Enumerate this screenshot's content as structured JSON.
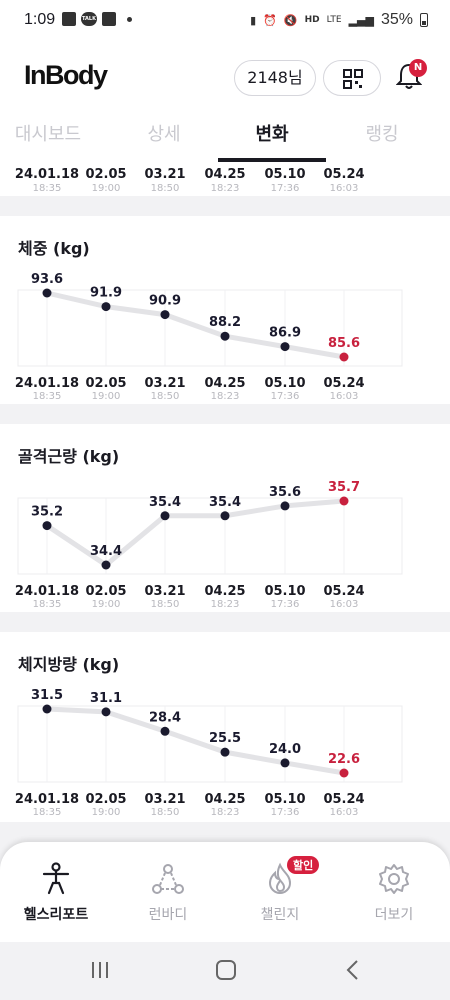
{
  "status_bar": {
    "time": "1:09",
    "talk_badge": "TALK",
    "hd_label": "HD",
    "lte_label": "LTE",
    "battery": "35%"
  },
  "header": {
    "logo": "InBody",
    "user_label": "2148님",
    "notification_badge": "N"
  },
  "tabs": [
    {
      "label": "대시보드",
      "active": false
    },
    {
      "label": "상세",
      "active": false
    },
    {
      "label": "변화",
      "active": true
    },
    {
      "label": "랭킹",
      "active": false
    }
  ],
  "dates": [
    {
      "date": "24.01.18",
      "time": "18:35"
    },
    {
      "date": "02.05",
      "time": "19:00"
    },
    {
      "date": "03.21",
      "time": "18:50"
    },
    {
      "date": "04.25",
      "time": "18:23"
    },
    {
      "date": "05.10",
      "time": "17:36"
    },
    {
      "date": "05.24",
      "time": "16:03"
    }
  ],
  "charts": [
    {
      "title": "체중 (kg)",
      "values": [
        "93.6",
        "91.9",
        "90.9",
        "88.2",
        "86.9",
        "85.6"
      ]
    },
    {
      "title": "골격근량 (kg)",
      "values": [
        "35.2",
        "34.4",
        "35.4",
        "35.4",
        "35.6",
        "35.7"
      ]
    },
    {
      "title": "체지방량 (kg)",
      "values": [
        "31.5",
        "31.1",
        "28.4",
        "25.5",
        "24.0",
        "22.6"
      ]
    }
  ],
  "chart_data": [
    {
      "type": "line",
      "title": "체중 (kg)",
      "x": [
        "24.01.18",
        "02.05",
        "03.21",
        "04.25",
        "05.10",
        "05.24"
      ],
      "y": [
        93.6,
        91.9,
        90.9,
        88.2,
        86.9,
        85.6
      ]
    },
    {
      "type": "line",
      "title": "골격근량 (kg)",
      "x": [
        "24.01.18",
        "02.05",
        "03.21",
        "04.25",
        "05.10",
        "05.24"
      ],
      "y": [
        35.2,
        34.4,
        35.4,
        35.4,
        35.6,
        35.7
      ]
    },
    {
      "type": "line",
      "title": "체지방량 (kg)",
      "x": [
        "24.01.18",
        "02.05",
        "03.21",
        "04.25",
        "05.10",
        "05.24"
      ],
      "y": [
        31.5,
        31.1,
        28.4,
        25.5,
        24.0,
        22.6
      ]
    }
  ],
  "colors": {
    "latest_point": "#c8213e",
    "point": "#1a1a2e",
    "line": "#e3e3e6"
  },
  "nav": [
    {
      "label": "헬스리포트",
      "icon": "person-icon",
      "active": true
    },
    {
      "label": "런바디",
      "icon": "run-nodes-icon",
      "active": false
    },
    {
      "label": "챌린지",
      "icon": "flame-icon",
      "active": false
    },
    {
      "label": "더보기",
      "icon": "gear-icon",
      "active": false
    }
  ],
  "nav_badge": "할인"
}
